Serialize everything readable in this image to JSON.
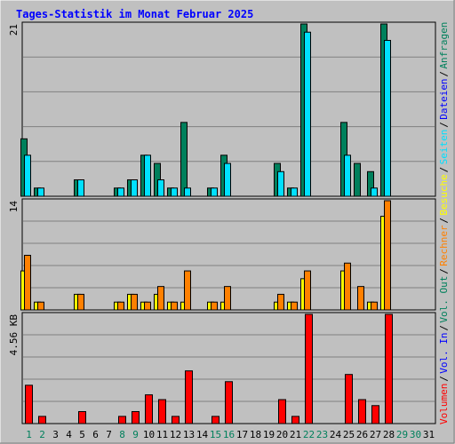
{
  "title": "Tages-Statistik im Monat Februar 2025",
  "colors": {
    "background": "#c0c0c0",
    "title": "#0000ff",
    "hits": "#00805c",
    "files": "#00e0ff",
    "pages": "#00e0ff",
    "visits": "#ffff00",
    "sites": "#ff8000",
    "kbytes": "#ff0000",
    "weekend_label": "#00805c",
    "gridline": "#808080"
  },
  "legend_right_top": [
    {
      "text": "Anfragen",
      "color": "#00805c"
    },
    {
      "text": "Dateien",
      "color": "#0000ff"
    },
    {
      "text": "Seiten",
      "color": "#00e0ff"
    },
    {
      "text": "Besuche",
      "color": "#ffff00"
    },
    {
      "text": "Rechner",
      "color": "#ff8000"
    },
    {
      "text": "Vol. Out",
      "color": "#00805c"
    },
    {
      "text": "Vol. In",
      "color": "#0000ff"
    },
    {
      "text": "Volumen",
      "color": "#ff0000"
    }
  ],
  "chart_data": [
    {
      "type": "bar",
      "name_key": "top",
      "y_max_label": "21",
      "ylim": [
        0,
        21
      ],
      "categories": [
        "1",
        "2",
        "3",
        "4",
        "5",
        "6",
        "7",
        "8",
        "9",
        "10",
        "11",
        "12",
        "13",
        "14",
        "15",
        "16",
        "17",
        "18",
        "19",
        "20",
        "21",
        "22",
        "23",
        "24",
        "25",
        "26",
        "27",
        "28",
        "29",
        "30",
        "31"
      ],
      "series": [
        {
          "name": "Anfragen",
          "values": [
            7,
            1,
            0,
            0,
            2,
            0,
            0,
            1,
            2,
            5,
            4,
            1,
            9,
            0,
            1,
            5,
            0,
            0,
            0,
            4,
            1,
            21,
            0,
            0,
            9,
            4,
            3,
            21,
            0,
            0,
            0
          ]
        },
        {
          "name": "Dateien",
          "values": [
            5,
            1,
            0,
            0,
            2,
            0,
            0,
            1,
            2,
            5,
            2,
            1,
            1,
            0,
            1,
            4,
            0,
            0,
            0,
            3,
            1,
            20,
            0,
            0,
            5,
            0,
            1,
            19,
            0,
            0,
            0
          ]
        }
      ]
    },
    {
      "type": "bar",
      "name_key": "middle",
      "y_max_label": "14",
      "ylim": [
        0,
        14
      ],
      "categories": [
        "1",
        "2",
        "3",
        "4",
        "5",
        "6",
        "7",
        "8",
        "9",
        "10",
        "11",
        "12",
        "13",
        "14",
        "15",
        "16",
        "17",
        "18",
        "19",
        "20",
        "21",
        "22",
        "23",
        "24",
        "25",
        "26",
        "27",
        "28",
        "29",
        "30",
        "31"
      ],
      "series": [
        {
          "name": "Besuche",
          "values": [
            5,
            1,
            0,
            0,
            2,
            0,
            0,
            1,
            2,
            1,
            2,
            1,
            1,
            0,
            1,
            1,
            0,
            0,
            0,
            1,
            1,
            4,
            0,
            0,
            5,
            0,
            1,
            12,
            0,
            0,
            0
          ]
        },
        {
          "name": "Rechner",
          "values": [
            7,
            1,
            0,
            0,
            2,
            0,
            0,
            1,
            2,
            1,
            3,
            1,
            5,
            0,
            1,
            3,
            0,
            0,
            0,
            2,
            1,
            5,
            0,
            0,
            6,
            3,
            1,
            14,
            0,
            0,
            0
          ]
        }
      ]
    },
    {
      "type": "bar",
      "name_key": "bottom",
      "y_max_label": "4.56 KB",
      "ylim": [
        0,
        4.56
      ],
      "categories": [
        "1",
        "2",
        "3",
        "4",
        "5",
        "6",
        "7",
        "8",
        "9",
        "10",
        "11",
        "12",
        "13",
        "14",
        "15",
        "16",
        "17",
        "18",
        "19",
        "20",
        "21",
        "22",
        "23",
        "24",
        "25",
        "26",
        "27",
        "28",
        "29",
        "30",
        "31"
      ],
      "series": [
        {
          "name": "Volumen",
          "values": [
            1.6,
            0.3,
            0,
            0,
            0.5,
            0,
            0,
            0.3,
            0.5,
            1.2,
            1.0,
            0.3,
            2.2,
            0,
            0.3,
            1.75,
            0,
            0,
            0,
            1.0,
            0.3,
            4.56,
            0,
            0,
            2.05,
            1.0,
            0.75,
            4.56,
            0,
            0,
            0
          ]
        }
      ]
    }
  ],
  "weekend_days": [
    1,
    2,
    8,
    9,
    15,
    16,
    22,
    23,
    29,
    30
  ]
}
